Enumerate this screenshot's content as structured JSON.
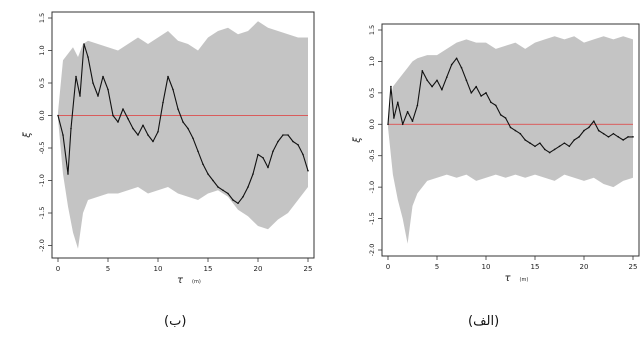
{
  "captions": {
    "left": "(ب)",
    "right": "(الف)"
  },
  "colors": {
    "band": "#c4c4c4",
    "path": "#111111",
    "zero_line": "#e03a3a",
    "axis": "#333333"
  },
  "chart_data": [
    {
      "type": "line",
      "panel": "left",
      "caption": "(ب)",
      "xlabel": "τ",
      "xlabel_unit": "(m)",
      "ylabel": "ξ",
      "xlim": [
        0,
        25
      ],
      "ylim": [
        -2.1,
        1.5
      ],
      "xticks": [
        "0",
        "5",
        "10",
        "15",
        "20",
        "25"
      ],
      "yticks": [
        "-2.0",
        "-1.5",
        "-1.0",
        "-0.5",
        "0.0",
        "0.5",
        "1.0",
        "1.5"
      ],
      "zero_line": 0,
      "band": {
        "x": [
          0,
          0.5,
          1,
          1.5,
          2,
          2.5,
          3,
          4,
          5,
          6,
          7,
          8,
          9,
          10,
          11,
          12,
          13,
          14,
          15,
          16,
          17,
          18,
          19,
          20,
          21,
          22,
          23,
          24,
          25
        ],
        "upper": [
          0.05,
          0.85,
          0.95,
          1.05,
          0.9,
          1.1,
          1.15,
          1.1,
          1.05,
          1.0,
          1.1,
          1.2,
          1.1,
          1.2,
          1.3,
          1.15,
          1.1,
          1.0,
          1.2,
          1.3,
          1.35,
          1.25,
          1.3,
          1.45,
          1.35,
          1.3,
          1.25,
          1.2,
          1.2
        ],
        "lower": [
          -0.05,
          -0.9,
          -1.4,
          -1.8,
          -2.05,
          -1.5,
          -1.3,
          -1.25,
          -1.2,
          -1.2,
          -1.15,
          -1.1,
          -1.2,
          -1.15,
          -1.1,
          -1.2,
          -1.25,
          -1.3,
          -1.2,
          -1.15,
          -1.25,
          -1.45,
          -1.55,
          -1.7,
          -1.75,
          -1.6,
          -1.5,
          -1.3,
          -1.1
        ]
      },
      "series": [
        {
          "x": [
            0,
            0.5,
            1,
            1.3,
            1.8,
            2.2,
            2.6,
            3,
            3.5,
            4,
            4.5,
            5,
            5.5,
            6,
            6.5,
            7,
            7.5,
            8,
            8.5,
            9,
            9.5,
            10,
            10.5,
            11,
            11.5,
            12,
            12.5,
            13,
            13.5,
            14,
            14.5,
            15,
            15.5,
            16,
            16.5,
            17,
            17.5,
            18,
            18.5,
            19,
            19.5,
            20,
            20.5,
            21,
            21.5,
            22,
            22.5,
            23,
            23.5,
            24,
            24.5,
            25
          ],
          "values": [
            0,
            -0.3,
            -0.9,
            -0.2,
            0.6,
            0.3,
            1.1,
            0.9,
            0.5,
            0.3,
            0.6,
            0.4,
            0.0,
            -0.1,
            0.1,
            -0.05,
            -0.2,
            -0.3,
            -0.15,
            -0.3,
            -0.4,
            -0.25,
            0.2,
            0.6,
            0.4,
            0.1,
            -0.1,
            -0.2,
            -0.35,
            -0.55,
            -0.75,
            -0.9,
            -1.0,
            -1.1,
            -1.15,
            -1.2,
            -1.3,
            -1.35,
            -1.25,
            -1.1,
            -0.9,
            -0.6,
            -0.65,
            -0.8,
            -0.55,
            -0.4,
            -0.3,
            -0.3,
            -0.4,
            -0.45,
            -0.6,
            -0.85
          ]
        }
      ]
    },
    {
      "type": "line",
      "panel": "right",
      "caption": "(الف)",
      "xlabel": "τ",
      "xlabel_unit": "(m)",
      "ylabel": "ξ",
      "xlim": [
        0,
        25
      ],
      "ylim": [
        -2.0,
        1.5
      ],
      "xticks": [
        "0",
        "5",
        "10",
        "15",
        "20",
        "25"
      ],
      "yticks": [
        "-2.0",
        "-1.5",
        "-1.0",
        "-0.5",
        "0.0",
        "0.5",
        "1.0",
        "1.5"
      ],
      "zero_line": 0,
      "band": {
        "x": [
          0,
          0.5,
          1,
          1.5,
          2,
          2.5,
          3,
          4,
          5,
          6,
          7,
          8,
          9,
          10,
          11,
          12,
          13,
          14,
          15,
          16,
          17,
          18,
          19,
          20,
          21,
          22,
          23,
          24,
          25
        ],
        "upper": [
          0.05,
          0.6,
          0.7,
          0.8,
          0.9,
          1.0,
          1.05,
          1.1,
          1.1,
          1.2,
          1.3,
          1.35,
          1.3,
          1.3,
          1.2,
          1.25,
          1.3,
          1.2,
          1.3,
          1.35,
          1.4,
          1.35,
          1.4,
          1.3,
          1.35,
          1.4,
          1.35,
          1.4,
          1.35
        ],
        "lower": [
          -0.05,
          -0.8,
          -1.2,
          -1.5,
          -1.9,
          -1.3,
          -1.1,
          -0.9,
          -0.85,
          -0.8,
          -0.85,
          -0.8,
          -0.9,
          -0.85,
          -0.8,
          -0.85,
          -0.8,
          -0.85,
          -0.8,
          -0.85,
          -0.9,
          -0.8,
          -0.85,
          -0.9,
          -0.85,
          -0.95,
          -1.0,
          -0.9,
          -0.85
        ]
      },
      "series": [
        {
          "x": [
            0,
            0.3,
            0.6,
            1,
            1.5,
            2,
            2.5,
            3,
            3.5,
            4,
            4.5,
            5,
            5.5,
            6,
            6.5,
            7,
            7.5,
            8,
            8.5,
            9,
            9.5,
            10,
            10.5,
            11,
            11.5,
            12,
            12.5,
            13,
            13.5,
            14,
            14.5,
            15,
            15.5,
            16,
            16.5,
            17,
            17.5,
            18,
            18.5,
            19,
            19.5,
            20,
            20.5,
            21,
            21.5,
            22,
            22.5,
            23,
            23.5,
            24,
            24.5,
            25
          ],
          "values": [
            0,
            0.6,
            0.1,
            0.35,
            0.0,
            0.2,
            0.05,
            0.3,
            0.85,
            0.7,
            0.6,
            0.7,
            0.55,
            0.75,
            0.95,
            1.05,
            0.9,
            0.7,
            0.5,
            0.6,
            0.45,
            0.5,
            0.35,
            0.3,
            0.15,
            0.1,
            -0.05,
            -0.1,
            -0.15,
            -0.25,
            -0.3,
            -0.35,
            -0.3,
            -0.4,
            -0.45,
            -0.4,
            -0.35,
            -0.3,
            -0.35,
            -0.25,
            -0.2,
            -0.1,
            -0.05,
            0.05,
            -0.1,
            -0.15,
            -0.2,
            -0.15,
            -0.2,
            -0.25,
            -0.2,
            -0.2
          ]
        }
      ]
    }
  ]
}
